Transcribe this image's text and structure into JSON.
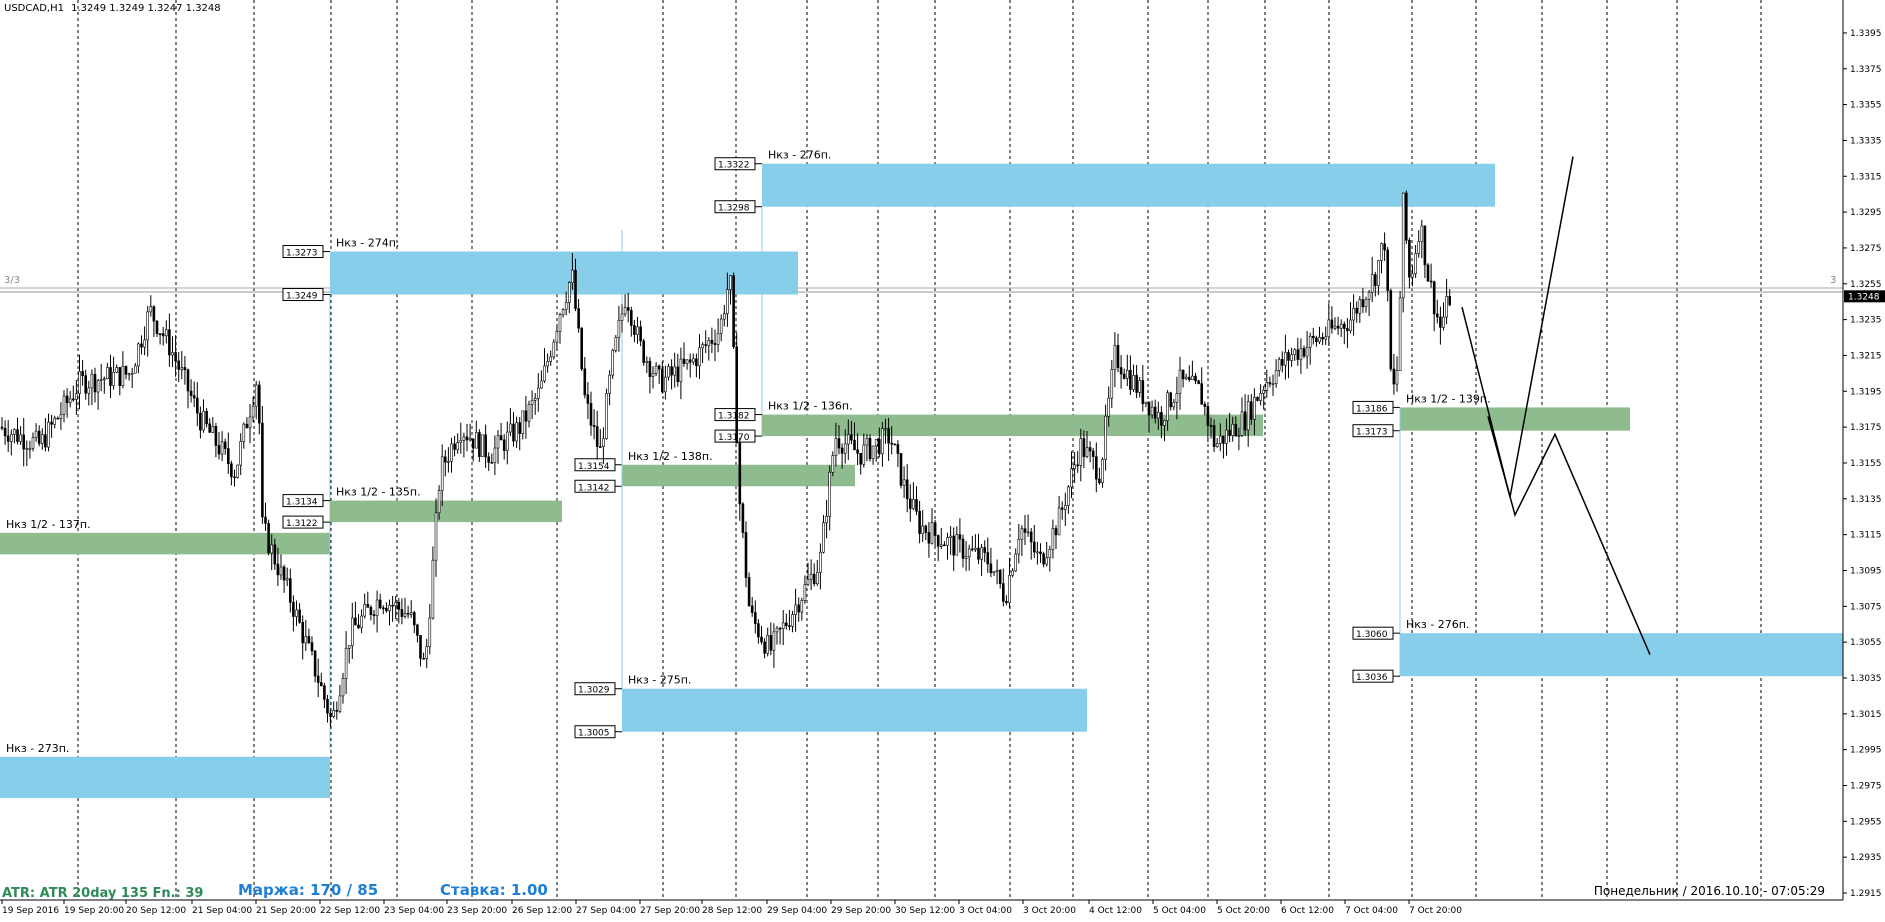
{
  "header": {
    "symbol": "USDCAD,H1",
    "ohlc": "1.3249 1.3249 1.3247 1.3248"
  },
  "chart_data": {
    "type": "candlestick",
    "ylim": [
      1.2915,
      1.3405
    ],
    "price_ticks": [
      "1.3395",
      "1.3375",
      "1.3355",
      "1.3335",
      "1.3315",
      "1.3295",
      "1.3275",
      "1.3255",
      "1.3235",
      "1.3215",
      "1.3195",
      "1.3175",
      "1.3155",
      "1.3135",
      "1.3115",
      "1.3095",
      "1.3075",
      "1.3055",
      "1.3035",
      "1.3015",
      "1.2995",
      "1.2975",
      "1.2955",
      "1.2935",
      "1.2915"
    ],
    "current_price": "1.3248",
    "time_labels": [
      "19 Sep 2016",
      "19 Sep 20:00",
      "20 Sep 12:00",
      "21 Sep 04:00",
      "21 Sep 20:00",
      "22 Sep 12:00",
      "23 Sep 04:00",
      "23 Sep 20:00",
      "26 Sep 12:00",
      "27 Sep 04:00",
      "27 Sep 20:00",
      "28 Sep 12:00",
      "29 Sep 04:00",
      "29 Sep 20:00",
      "30 Sep 12:00",
      "3 Oct 04:00",
      "3 Oct 20:00",
      "4 Oct 12:00",
      "5 Oct 04:00",
      "5 Oct 20:00",
      "6 Oct 12:00",
      "7 Oct 04:00",
      "7 Oct 20:00"
    ],
    "hline_label": "3/3",
    "hline_label_right": "3",
    "hline_price": 1.3251,
    "zones": [
      {
        "type": "supply",
        "top": 1.2991,
        "bottom": 1.2968,
        "label": "Нкз - 273п.",
        "price_labels": []
      },
      {
        "type": "half",
        "top": 1.3116,
        "bottom": 1.3104,
        "label": "Нкз 1/2 - 137п.",
        "price_labels": []
      },
      {
        "type": "supply",
        "top": 1.3273,
        "bottom": 1.3249,
        "label": "Нкз - 274п.",
        "price_labels": [
          "1.3273",
          "1.3249"
        ]
      },
      {
        "type": "half",
        "top": 1.3134,
        "bottom": 1.3122,
        "label": "Нкз 1/2 - 135п.",
        "price_labels": [
          "1.3134",
          "1.3122"
        ]
      },
      {
        "type": "half",
        "top": 1.3154,
        "bottom": 1.3142,
        "label": "Нкз 1/2 - 138п.",
        "price_labels": [
          "1.3154",
          "1.3142"
        ]
      },
      {
        "type": "supply",
        "top": 1.3029,
        "bottom": 1.3005,
        "label": "Нкз - 275п.",
        "price_labels": [
          "1.3029",
          "1.3005"
        ]
      },
      {
        "type": "supply",
        "top": 1.3322,
        "bottom": 1.3298,
        "label": "Нкз - 276п.",
        "price_labels": [
          "1.3322",
          "1.3298"
        ]
      },
      {
        "type": "half",
        "top": 1.3182,
        "bottom": 1.317,
        "label": "Нкз 1/2 - 136п.",
        "price_labels": [
          "1.3182",
          "1.3170"
        ]
      },
      {
        "type": "half",
        "top": 1.3186,
        "bottom": 1.3173,
        "label": "Нкз 1/2 - 139п.",
        "price_labels": [
          "1.3186",
          "1.3173"
        ]
      },
      {
        "type": "supply",
        "top": 1.306,
        "bottom": 1.3036,
        "label": "Нкз - 276п.",
        "price_labels": [
          "1.3060",
          "1.3036"
        ]
      }
    ],
    "forecast_path": [
      1.3242,
      1.3136,
      1.3326
    ],
    "forecast_path2": [
      1.3181,
      1.3126,
      1.3171,
      1.3048
    ]
  },
  "footer": {
    "atr": "ATR: ATR 20day 135 Fn.: 39",
    "margin": "Маржа: 170 / 85",
    "rate": "Ставка: 1.00",
    "datetime": "Понедельник  /  2016.10.10  -  07:05:29"
  },
  "colors": {
    "supply": "#87ceeb",
    "half": "#8fbc8f",
    "candle": "#000000",
    "grid": "#000000"
  }
}
